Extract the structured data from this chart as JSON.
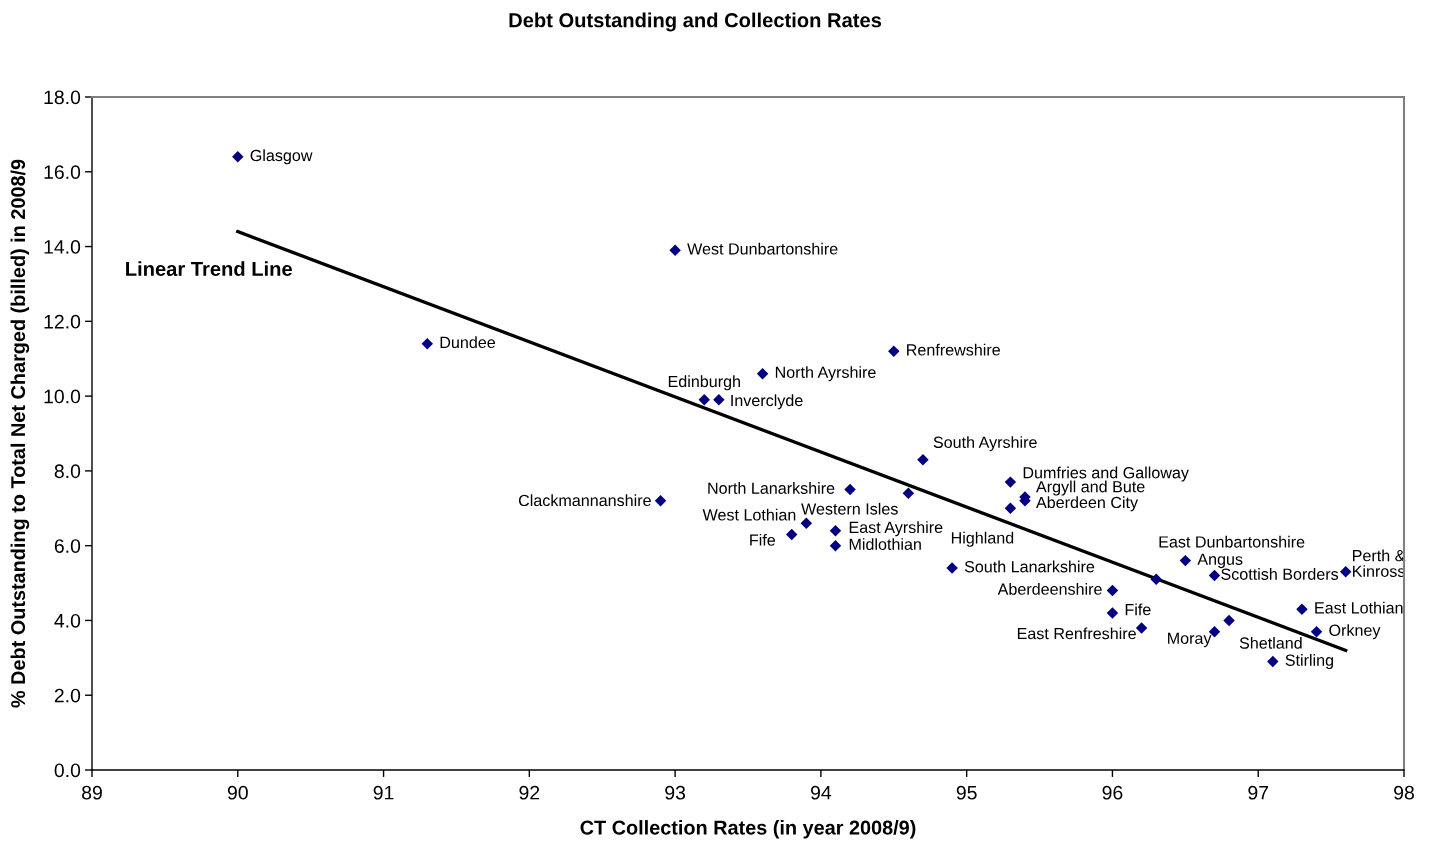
{
  "chart_data": {
    "type": "scatter",
    "title": "Debt Outstanding and Collection Rates",
    "xlabel": "CT Collection Rates (in year 2008/9)",
    "ylabel": "% Debt Outstanding to Total Net Charged (billed) in 2008/9",
    "x": [
      90.0,
      93.0,
      91.3,
      94.5,
      93.6,
      93.2,
      93.3,
      94.7,
      95.3,
      95.4,
      95.4,
      95.3,
      94.6,
      94.2,
      92.9,
      93.9,
      94.1,
      93.8,
      94.1,
      94.9,
      96.5,
      96.3,
      96.7,
      97.6,
      96.0,
      96.0,
      97.3,
      96.8,
      97.4,
      96.7,
      96.2,
      97.1
    ],
    "series": [
      {
        "color": "#000080",
        "marker": "diamond",
        "values": [
          16.4,
          13.9,
          11.4,
          11.2,
          10.6,
          9.9,
          9.9,
          8.3,
          7.7,
          7.3,
          7.2,
          7.0,
          7.4,
          7.5,
          7.2,
          6.6,
          6.4,
          6.3,
          6.0,
          5.4,
          5.6,
          5.1,
          5.2,
          5.3,
          4.8,
          4.2,
          4.3,
          4.0,
          3.7,
          3.7,
          3.8,
          2.9
        ]
      },
      {
        "type": "line",
        "name": "Linear Trend Line",
        "color": "#000000",
        "marker": "none",
        "line_style": "solid",
        "x": [
          90.0,
          97.6
        ],
        "values": [
          14.4,
          3.2
        ]
      }
    ],
    "annotations": [
      {
        "text": "Glasgow",
        "x": 90.0,
        "y": 16.4
      },
      {
        "text": "West Dunbartonshire",
        "x": 93.0,
        "y": 13.9
      },
      {
        "text": "Dundee",
        "x": 91.3,
        "y": 11.4
      },
      {
        "text": "Renfrewshire",
        "x": 94.5,
        "y": 11.2
      },
      {
        "text": "North Ayrshire",
        "x": 93.6,
        "y": 10.6
      },
      {
        "text": "Edinburgh",
        "x": 93.2,
        "y": 9.9
      },
      {
        "text": "Inverclyde",
        "x": 93.3,
        "y": 9.9
      },
      {
        "text": "South Ayrshire",
        "x": 94.7,
        "y": 8.3
      },
      {
        "text": "Dumfries and Galloway",
        "x": 95.3,
        "y": 7.7
      },
      {
        "text": "Argyll and Bute",
        "x": 95.4,
        "y": 7.3
      },
      {
        "text": "Aberdeen City",
        "x": 95.4,
        "y": 7.2
      },
      {
        "text": "Highland",
        "x": 95.3,
        "y": 7.0
      },
      {
        "text": "Western Isles",
        "x": 94.6,
        "y": 7.4
      },
      {
        "text": "North Lanarkshire",
        "x": 94.2,
        "y": 7.5
      },
      {
        "text": "Clackmannanshire",
        "x": 92.9,
        "y": 7.2
      },
      {
        "text": "West Lothian",
        "x": 93.9,
        "y": 6.6
      },
      {
        "text": "East Ayrshire",
        "x": 94.1,
        "y": 6.4
      },
      {
        "text": "Fife",
        "x": 93.8,
        "y": 6.3
      },
      {
        "text": "Midlothian",
        "x": 94.1,
        "y": 6.0
      },
      {
        "text": "South Lanarkshire",
        "x": 94.9,
        "y": 5.4
      },
      {
        "text": "Angus",
        "x": 96.5,
        "y": 5.6
      },
      {
        "text": "East Dunbartonshire",
        "x": 96.3,
        "y": 5.1
      },
      {
        "text": "Scottish Borders",
        "x": 96.7,
        "y": 5.2
      },
      {
        "text": "Perth &\nKinross",
        "x": 97.6,
        "y": 5.3
      },
      {
        "text": "Aberdeenshire",
        "x": 96.0,
        "y": 4.8
      },
      {
        "text": "Fife",
        "x": 96.0,
        "y": 4.2
      },
      {
        "text": "East Lothian",
        "x": 97.3,
        "y": 4.3
      },
      {
        "text": "Shetland",
        "x": 96.8,
        "y": 4.0
      },
      {
        "text": "Orkney",
        "x": 97.4,
        "y": 3.7
      },
      {
        "text": "Moray",
        "x": 96.7,
        "y": 3.7
      },
      {
        "text": "East Renfreshire",
        "x": 96.2,
        "y": 3.8
      },
      {
        "text": "Stirling",
        "x": 97.1,
        "y": 2.9
      }
    ],
    "xlim": [
      89,
      98
    ],
    "xticks": [
      89,
      90,
      91,
      92,
      93,
      94,
      95,
      96,
      97,
      98
    ],
    "ylim": [
      0,
      18
    ],
    "yticks": [
      {
        "value": 0,
        "label": "0.0"
      },
      {
        "value": 2,
        "label": "2.0"
      },
      {
        "value": 4,
        "label": "4.0"
      },
      {
        "value": 6,
        "label": "6.0"
      },
      {
        "value": 8,
        "label": "8.0"
      },
      {
        "value": 10,
        "label": "10.0"
      },
      {
        "value": 12,
        "label": "12.0"
      },
      {
        "value": 14,
        "label": "14.0"
      },
      {
        "value": 16,
        "label": "16.0"
      },
      {
        "value": 18,
        "label": "18.0"
      }
    ],
    "grid": false
  }
}
